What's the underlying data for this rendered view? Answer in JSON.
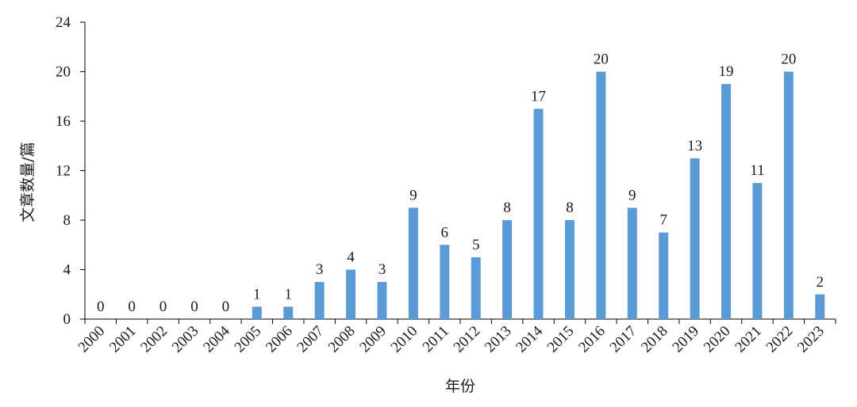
{
  "chart_data": {
    "type": "bar",
    "title": "",
    "xlabel": "年份",
    "ylabel": "文章数量/篇",
    "ylim": [
      0,
      24
    ],
    "yticks": [
      "0",
      "4",
      "8",
      "12",
      "16",
      "20",
      "24"
    ],
    "categories": [
      "2000",
      "2001",
      "2002",
      "2003",
      "2004",
      "2005",
      "2006",
      "2007",
      "2008",
      "2009",
      "2010",
      "2011",
      "2012",
      "2013",
      "2014",
      "2015",
      "2016",
      "2017",
      "2018",
      "2019",
      "2020",
      "2021",
      "2022",
      "2023"
    ],
    "values": [
      0,
      0,
      0,
      0,
      0,
      1,
      1,
      3,
      4,
      3,
      9,
      6,
      5,
      8,
      17,
      8,
      20,
      9,
      7,
      13,
      19,
      11,
      20,
      2
    ],
    "bar_color": "#5B9BD5",
    "grid": false,
    "legend": "none"
  }
}
